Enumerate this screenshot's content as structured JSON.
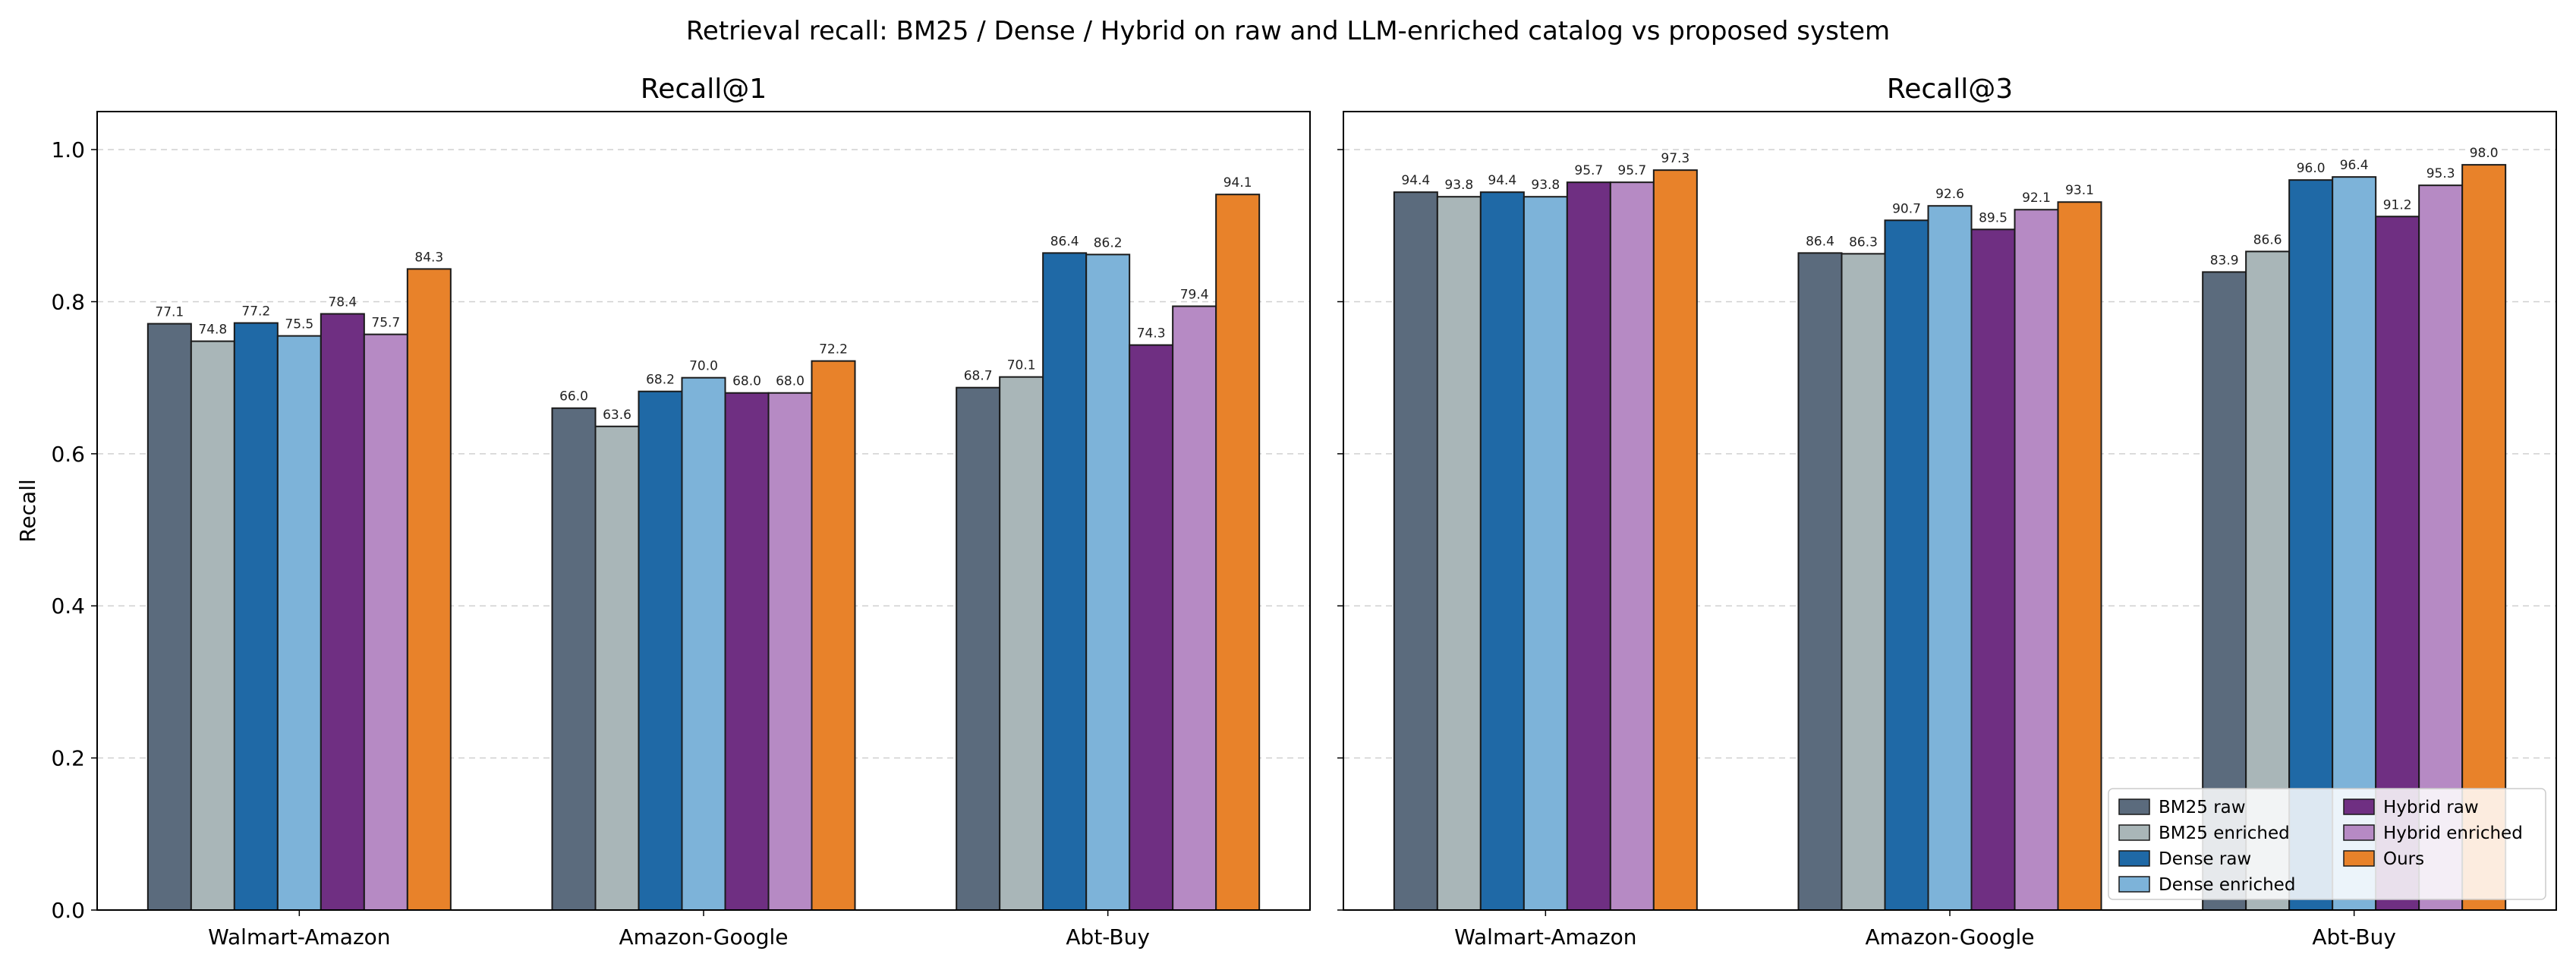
{
  "title": "Retrieval recall: BM25 / Dense / Hybrid on raw and LLM-enriched catalog vs proposed system",
  "ylabel": "Recall",
  "legend": {
    "placement": "bottom-right of Recall@3 panel",
    "columns": 2
  },
  "colors": {
    "BM25 raw": "#5b6b7d",
    "BM25 enriched": "#a9b6b8",
    "Dense raw": "#1f69a6",
    "Dense enriched": "#7db3d9",
    "Hybrid raw": "#6f2f82",
    "Hybrid enriched": "#b68ac4",
    "Ours": "#e8822a"
  },
  "chart_data": [
    {
      "type": "bar",
      "title": "Recall@1",
      "xlabel": "",
      "ylabel": "Recall",
      "ylim": [
        0,
        1.05
      ],
      "yticks": [
        "0.0",
        "0.2",
        "0.4",
        "0.6",
        "0.8",
        "1.0"
      ],
      "grid": "horizontal dashed",
      "categories": [
        "Walmart-Amazon",
        "Amazon-Google",
        "Abt-Buy"
      ],
      "series": [
        {
          "name": "BM25 raw",
          "values": [
            0.771,
            0.66,
            0.687
          ],
          "labels": [
            "77.1",
            "66.0",
            "68.7"
          ]
        },
        {
          "name": "BM25 enriched",
          "values": [
            0.748,
            0.636,
            0.701
          ],
          "labels": [
            "74.8",
            "63.6",
            "70.1"
          ]
        },
        {
          "name": "Dense raw",
          "values": [
            0.772,
            0.682,
            0.864
          ],
          "labels": [
            "77.2",
            "68.2",
            "86.4"
          ]
        },
        {
          "name": "Dense enriched",
          "values": [
            0.755,
            0.7,
            0.862
          ],
          "labels": [
            "75.5",
            "70.0",
            "86.2"
          ]
        },
        {
          "name": "Hybrid raw",
          "values": [
            0.784,
            0.68,
            0.743
          ],
          "labels": [
            "78.4",
            "68.0",
            "74.3"
          ]
        },
        {
          "name": "Hybrid enriched",
          "values": [
            0.757,
            0.68,
            0.794
          ],
          "labels": [
            "75.7",
            "68.0",
            "79.4"
          ]
        },
        {
          "name": "Ours",
          "values": [
            0.843,
            0.722,
            0.941
          ],
          "labels": [
            "84.3",
            "72.2",
            "94.1"
          ]
        }
      ]
    },
    {
      "type": "bar",
      "title": "Recall@3",
      "xlabel": "",
      "ylabel": "",
      "ylim": [
        0,
        1.05
      ],
      "grid": "horizontal dashed",
      "categories": [
        "Walmart-Amazon",
        "Amazon-Google",
        "Abt-Buy"
      ],
      "series": [
        {
          "name": "BM25 raw",
          "values": [
            0.944,
            0.864,
            0.839
          ],
          "labels": [
            "94.4",
            "86.4",
            "83.9"
          ]
        },
        {
          "name": "BM25 enriched",
          "values": [
            0.938,
            0.863,
            0.866
          ],
          "labels": [
            "93.8",
            "86.3",
            "86.6"
          ]
        },
        {
          "name": "Dense raw",
          "values": [
            0.944,
            0.907,
            0.96
          ],
          "labels": [
            "94.4",
            "90.7",
            "96.0"
          ]
        },
        {
          "name": "Dense enriched",
          "values": [
            0.938,
            0.926,
            0.964
          ],
          "labels": [
            "93.8",
            "92.6",
            "96.4"
          ]
        },
        {
          "name": "Hybrid raw",
          "values": [
            0.957,
            0.895,
            0.912
          ],
          "labels": [
            "95.7",
            "89.5",
            "91.2"
          ]
        },
        {
          "name": "Hybrid enriched",
          "values": [
            0.957,
            0.921,
            0.953
          ],
          "labels": [
            "95.7",
            "92.1",
            "95.3"
          ]
        },
        {
          "name": "Ours",
          "values": [
            0.973,
            0.931,
            0.98
          ],
          "labels": [
            "97.3",
            "93.1",
            "98.0"
          ]
        }
      ]
    }
  ]
}
